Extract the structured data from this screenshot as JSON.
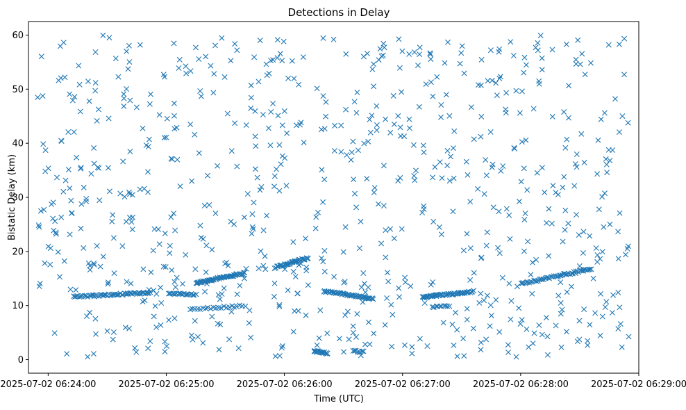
{
  "chart_data": {
    "type": "scatter",
    "title": "Detections in Delay",
    "xlabel": "Time (UTC)",
    "ylabel": "Bistatic Delay (km)",
    "marker": "x",
    "color": "#1f77b4",
    "grid": false,
    "legend": "none",
    "xlim": [
      "2025-07-02 06:23:50",
      "2025-07-02 06:29:00"
    ],
    "ylim": [
      -2.5,
      62.5
    ],
    "x_ticks": [
      "2025-07-02 06:24:00",
      "2025-07-02 06:25:00",
      "2025-07-02 06:26:00",
      "2025-07-02 06:27:00",
      "2025-07-02 06:28:00",
      "2025-07-02 06:29:00"
    ],
    "y_ticks": [
      0,
      10,
      20,
      30,
      40,
      50,
      60
    ],
    "time_range": [
      "2025-07-02 06:23:52",
      "2025-07-02 06:28:55"
    ],
    "noise": {
      "count": 780,
      "delay_range": [
        0.5,
        60
      ]
    },
    "tracks": [
      {
        "name": "",
        "t_start": "2025-07-02 06:24:13",
        "t_end": "2025-07-02 06:24:52",
        "delay_start": 11.6,
        "delay_end": 12.4,
        "count": 60
      },
      {
        "name": "",
        "t_start": "2025-07-02 06:25:01",
        "t_end": "2025-07-02 06:25:15",
        "delay_start": 12.3,
        "delay_end": 12.0,
        "count": 20
      },
      {
        "name": "",
        "t_start": "2025-07-02 06:25:15",
        "t_end": "2025-07-02 06:25:40",
        "delay_start": 14.2,
        "delay_end": 16.0,
        "count": 50
      },
      {
        "name": "",
        "t_start": "2025-07-02 06:25:12",
        "t_end": "2025-07-02 06:25:40",
        "delay_start": 9.3,
        "delay_end": 10.0,
        "count": 22
      },
      {
        "name": "",
        "t_start": "2025-07-02 06:25:55",
        "t_end": "2025-07-02 06:26:12",
        "delay_start": 17.0,
        "delay_end": 18.8,
        "count": 35
      },
      {
        "name": "",
        "t_start": "2025-07-02 06:26:20",
        "t_end": "2025-07-02 06:26:45",
        "delay_start": 12.6,
        "delay_end": 11.3,
        "count": 50
      },
      {
        "name": "",
        "t_start": "2025-07-02 06:26:15",
        "t_end": "2025-07-02 06:26:22",
        "delay_start": 1.6,
        "delay_end": 1.2,
        "count": 18
      },
      {
        "name": "",
        "t_start": "2025-07-02 06:26:35",
        "t_end": "2025-07-02 06:26:40",
        "delay_start": 1.6,
        "delay_end": 1.4,
        "count": 8
      },
      {
        "name": "",
        "t_start": "2025-07-02 06:27:10",
        "t_end": "2025-07-02 06:27:36",
        "delay_start": 11.5,
        "delay_end": 12.6,
        "count": 50
      },
      {
        "name": "",
        "t_start": "2025-07-02 06:27:15",
        "t_end": "2025-07-02 06:27:24",
        "delay_start": 9.8,
        "delay_end": 10.0,
        "count": 10
      },
      {
        "name": "",
        "t_start": "2025-07-02 06:28:00",
        "t_end": "2025-07-02 06:28:36",
        "delay_start": 14.0,
        "delay_end": 16.8,
        "count": 50
      }
    ]
  }
}
